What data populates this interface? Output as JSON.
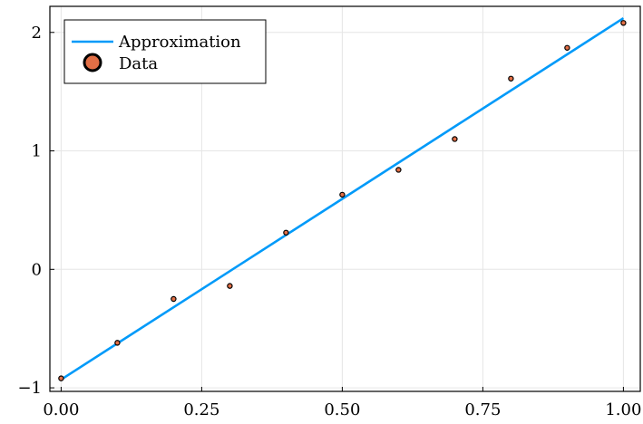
{
  "chart_data": {
    "type": "scatter",
    "title": "",
    "xlabel": "",
    "ylabel": "",
    "xlim": [
      -0.02,
      1.03
    ],
    "ylim": [
      -1.03,
      2.22
    ],
    "grid": true,
    "legend_position": "top-left",
    "x_ticks": [
      0.0,
      0.25,
      0.5,
      0.75,
      1.0
    ],
    "x_tick_labels": [
      "0.00",
      "0.25",
      "0.50",
      "0.75",
      "1.00"
    ],
    "y_ticks": [
      -1,
      0,
      1,
      2
    ],
    "y_tick_labels": [
      "−1",
      "0",
      "1",
      "2"
    ],
    "series": [
      {
        "name": "Approximation",
        "kind": "line",
        "color": "#009af9",
        "x": [
          0.0,
          1.0
        ],
        "y": [
          -0.93,
          2.12
        ]
      },
      {
        "name": "Data",
        "kind": "scatter",
        "color": "#e26f46",
        "x": [
          0.0,
          0.1,
          0.2,
          0.3,
          0.4,
          0.5,
          0.6,
          0.7,
          0.8,
          0.9,
          1.0
        ],
        "y": [
          -0.92,
          -0.62,
          -0.25,
          -0.14,
          0.31,
          0.63,
          0.84,
          1.1,
          1.61,
          1.87,
          2.08
        ]
      }
    ]
  }
}
